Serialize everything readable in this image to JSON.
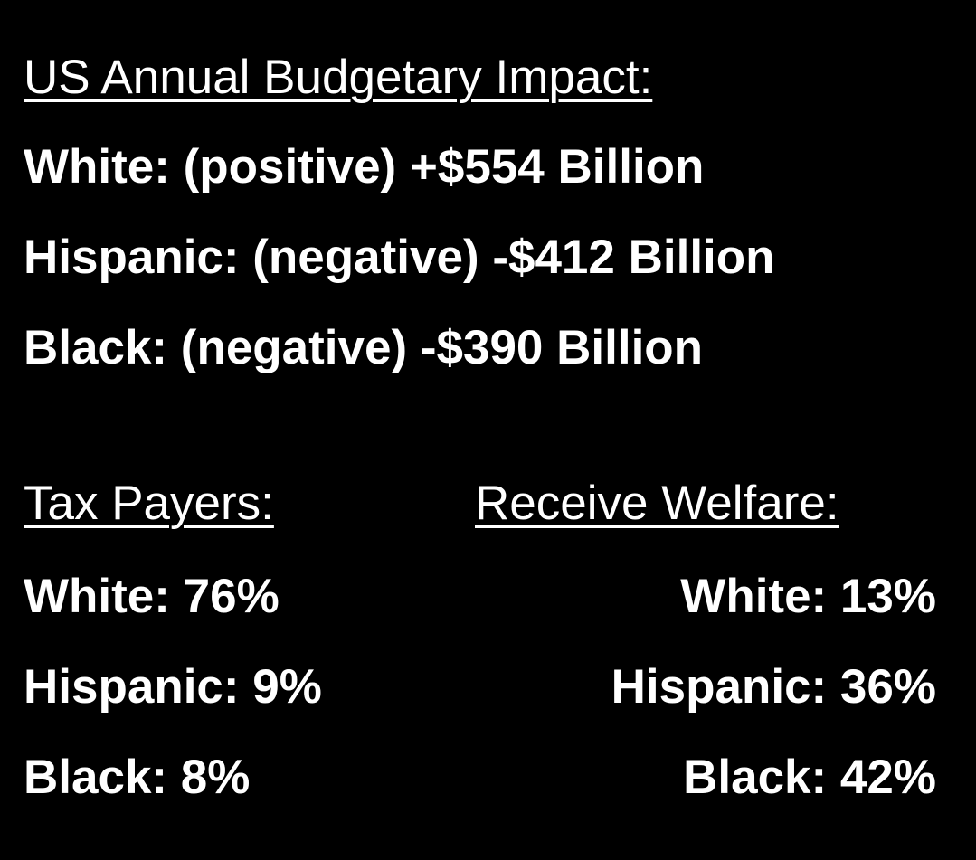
{
  "header": {
    "title": "US Annual Budgetary Impact:"
  },
  "impact": [
    "White: (positive) +$554 Billion",
    "Hispanic: (negative) -$412 Billion",
    "Black: (negative) -$390 Billion"
  ],
  "tax_payers": {
    "title": "Tax Payers:",
    "rows": [
      "White: 76%",
      "Hispanic: 9%",
      "Black: 8%"
    ]
  },
  "welfare": {
    "title": "Receive Welfare:",
    "rows": [
      "White: 13%",
      "Hispanic: 36%",
      "Black: 42%"
    ]
  }
}
